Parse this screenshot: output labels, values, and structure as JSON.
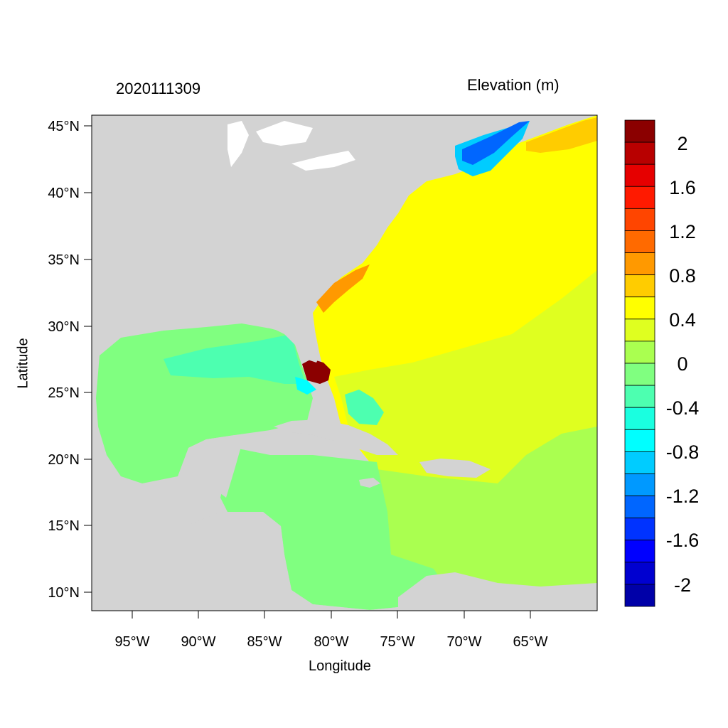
{
  "titles": {
    "left": "2020111309",
    "right": "Elevation (m)",
    "x_axis": "Longitude",
    "y_axis": "Latitude"
  },
  "axes": {
    "lat_ticks": [
      "45°N",
      "40°N",
      "35°N",
      "30°N",
      "25°N",
      "20°N",
      "15°N",
      "10°N"
    ],
    "lon_ticks": [
      "95°W",
      "90°W",
      "85°W",
      "80°W",
      "75°W",
      "70°W",
      "65°W"
    ],
    "lat_range": [
      8.5,
      45.8
    ],
    "lon_range": [
      -98,
      -60
    ]
  },
  "colorbar": {
    "labels": [
      "2",
      "1.6",
      "1.2",
      "0.8",
      "0.4",
      "0",
      "-0.4",
      "-0.8",
      "-1.2",
      "-1.6",
      "-2"
    ],
    "colors": [
      "#8b0000",
      "#b80000",
      "#e60000",
      "#ff1a00",
      "#ff4500",
      "#ff6a00",
      "#ff9900",
      "#ffcc00",
      "#ffff00",
      "#dfff20",
      "#aaff50",
      "#80ff80",
      "#4dffb0",
      "#1affe0",
      "#00ffff",
      "#00ccff",
      "#0099ff",
      "#0066ff",
      "#0033ff",
      "#0000ff",
      "#0000d0",
      "#0000a8"
    ]
  },
  "map": {
    "land_color": "#d3d3d3"
  }
}
